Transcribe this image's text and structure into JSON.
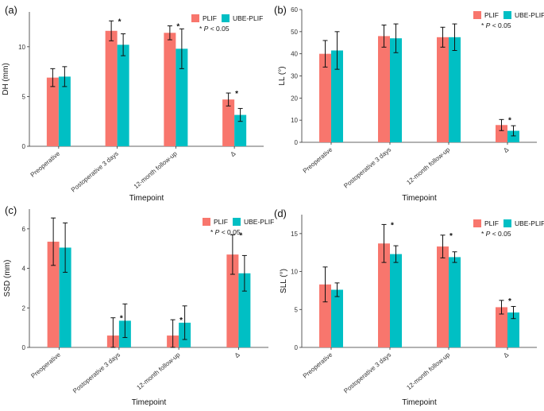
{
  "colors": {
    "plif": "#F8766D",
    "ube": "#00BFC4",
    "axis": "#333333",
    "err": "#111111"
  },
  "legend": {
    "plif": "PLIF",
    "ube": "UBE-PLIF",
    "sig_prefix": "*",
    "sig_p": "P",
    "sig_rest": " < 0.05"
  },
  "chart_data": [
    {
      "type": "bar",
      "panel": "(a)",
      "ylabel": "DH (mm)",
      "xlabel": "Timepoint",
      "ylim": [
        0,
        13.5
      ],
      "yticks": [
        0,
        5,
        10
      ],
      "categories": [
        "Preoperative",
        "Postoperative 3 days",
        "12-month follow-up",
        "Δ"
      ],
      "series": [
        {
          "name": "PLIF",
          "values": [
            6.9,
            11.6,
            11.4,
            4.7
          ],
          "errors": [
            0.9,
            1.0,
            0.7,
            0.65
          ]
        },
        {
          "name": "UBE-PLIF",
          "values": [
            7.0,
            10.2,
            9.8,
            3.15
          ],
          "errors": [
            1.0,
            1.1,
            2.0,
            0.65
          ]
        }
      ],
      "significant": [
        false,
        true,
        true,
        true
      ]
    },
    {
      "type": "bar",
      "panel": "(b)",
      "ylabel": "LL (°)",
      "xlabel": "Timepoint",
      "ylim": [
        0,
        60
      ],
      "yticks": [
        0,
        10,
        20,
        30,
        40,
        50,
        60
      ],
      "categories": [
        "Preoperative",
        "Postoperative 3 days",
        "12-month follow-up",
        "Δ"
      ],
      "series": [
        {
          "name": "PLIF",
          "values": [
            40,
            48,
            47.5,
            7.8
          ],
          "errors": [
            6,
            5,
            4.5,
            2.5
          ]
        },
        {
          "name": "UBE-PLIF",
          "values": [
            41.5,
            47,
            47.5,
            5.2
          ],
          "errors": [
            8.5,
            6.5,
            6,
            2.3
          ]
        }
      ],
      "significant": [
        false,
        false,
        false,
        true
      ]
    },
    {
      "type": "bar",
      "panel": "(c)",
      "ylabel": "SSD (mm)",
      "xlabel": "Timepoint",
      "ylim": [
        0,
        7
      ],
      "yticks": [
        0,
        2,
        4,
        6
      ],
      "categories": [
        "Preoperative",
        "Postoperative 3 days",
        "12-month follow-up",
        "Δ"
      ],
      "series": [
        {
          "name": "PLIF",
          "values": [
            5.35,
            0.6,
            0.6,
            4.7
          ],
          "errors": [
            1.2,
            0.9,
            0.8,
            1.0
          ]
        },
        {
          "name": "UBE-PLIF",
          "values": [
            5.05,
            1.35,
            1.25,
            3.75
          ],
          "errors": [
            1.25,
            0.85,
            0.85,
            0.9
          ]
        }
      ],
      "significant": [
        false,
        true,
        true,
        true
      ]
    },
    {
      "type": "bar",
      "panel": "(d)",
      "ylabel": "SLL (°)",
      "xlabel": "Timepoint",
      "ylim": [
        0,
        17.5
      ],
      "yticks": [
        0,
        5,
        10,
        15
      ],
      "categories": [
        "Preoperative",
        "Postoperative 3 days",
        "12-month follow-up",
        "Δ"
      ],
      "series": [
        {
          "name": "PLIF",
          "values": [
            8.3,
            13.7,
            13.3,
            5.3
          ],
          "errors": [
            2.3,
            2.5,
            1.5,
            0.9
          ]
        },
        {
          "name": "UBE-PLIF",
          "values": [
            7.6,
            12.3,
            11.9,
            4.6
          ],
          "errors": [
            0.9,
            1.1,
            0.7,
            0.8
          ]
        }
      ],
      "significant": [
        false,
        true,
        true,
        true
      ]
    }
  ]
}
